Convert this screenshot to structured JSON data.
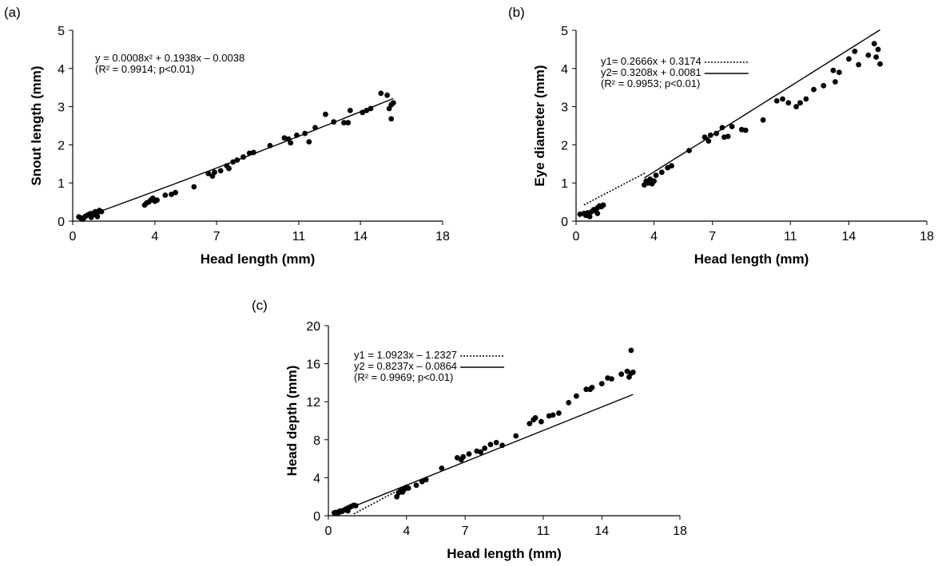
{
  "chart_data": [
    {
      "id": "a",
      "type": "scatter",
      "panel_label": "(a)",
      "xlabel": "Head length (mm)",
      "ylabel": "Snout length (mm)",
      "xlim": [
        0,
        18
      ],
      "ylim": [
        0,
        5
      ],
      "xticks": [
        0,
        4,
        7,
        11,
        14,
        18
      ],
      "yticks": [
        0,
        1,
        2,
        3,
        4,
        5
      ],
      "equations": [
        {
          "text": "y = 0.0008x² + 0.1938x – 0.0038",
          "style": "none"
        },
        {
          "text": "(R² = 0.9914; p<0.01)",
          "style": "none"
        }
      ],
      "fits": [
        {
          "kind": "poly",
          "coef": [
            0.0008,
            0.1938,
            -0.0038
          ],
          "from": 0.3,
          "to": 15.6,
          "dash": "solid"
        }
      ],
      "points": [
        [
          0.3,
          0.11
        ],
        [
          0.4,
          0.08
        ],
        [
          0.5,
          0.05
        ],
        [
          0.6,
          0.12
        ],
        [
          0.7,
          0.15
        ],
        [
          0.8,
          0.18
        ],
        [
          0.9,
          0.2
        ],
        [
          1.0,
          0.17
        ],
        [
          1.1,
          0.25
        ],
        [
          1.2,
          0.22
        ],
        [
          1.3,
          0.28
        ],
        [
          1.4,
          0.25
        ],
        [
          1.2,
          0.12
        ],
        [
          0.9,
          0.1
        ],
        [
          3.5,
          0.42
        ],
        [
          3.6,
          0.48
        ],
        [
          3.7,
          0.5
        ],
        [
          3.8,
          0.55
        ],
        [
          3.9,
          0.6
        ],
        [
          4.0,
          0.52
        ],
        [
          4.1,
          0.55
        ],
        [
          4.5,
          0.68
        ],
        [
          4.8,
          0.7
        ],
        [
          5.0,
          0.75
        ],
        [
          5.9,
          0.9
        ],
        [
          6.6,
          1.25
        ],
        [
          6.8,
          1.18
        ],
        [
          6.9,
          1.28
        ],
        [
          7.2,
          1.32
        ],
        [
          7.5,
          1.45
        ],
        [
          7.6,
          1.38
        ],
        [
          7.8,
          1.55
        ],
        [
          8.0,
          1.6
        ],
        [
          8.3,
          1.68
        ],
        [
          8.6,
          1.78
        ],
        [
          8.8,
          1.8
        ],
        [
          9.6,
          1.98
        ],
        [
          10.3,
          2.18
        ],
        [
          10.5,
          2.15
        ],
        [
          10.6,
          2.05
        ],
        [
          10.9,
          2.25
        ],
        [
          11.3,
          2.3
        ],
        [
          11.5,
          2.08
        ],
        [
          11.8,
          2.45
        ],
        [
          12.3,
          2.8
        ],
        [
          12.7,
          2.6
        ],
        [
          13.2,
          2.58
        ],
        [
          13.4,
          2.58
        ],
        [
          13.5,
          2.9
        ],
        [
          14.1,
          2.85
        ],
        [
          14.3,
          2.9
        ],
        [
          14.5,
          2.95
        ],
        [
          15.0,
          3.35
        ],
        [
          15.3,
          3.3
        ],
        [
          15.4,
          2.95
        ],
        [
          15.5,
          2.68
        ],
        [
          15.5,
          3.05
        ],
        [
          15.6,
          3.1
        ]
      ]
    },
    {
      "id": "b",
      "type": "scatter",
      "panel_label": "(b)",
      "xlabel": "Head length (mm)",
      "ylabel": "Eye diameter (mm)",
      "xlim": [
        0,
        18
      ],
      "ylim": [
        0,
        5
      ],
      "xticks": [
        0,
        4,
        7,
        11,
        14,
        18
      ],
      "yticks": [
        0,
        1,
        2,
        3,
        4,
        5
      ],
      "equations": [
        {
          "text": "y1= 0.2666x + 0.3174",
          "style": "dotted"
        },
        {
          "text": "y2= 0.3208x + 0.0081",
          "style": "solid"
        },
        {
          "text": "(R² = 0.9953; p<0.01)",
          "style": "none"
        }
      ],
      "fits": [
        {
          "kind": "linear",
          "coef": [
            0.2666,
            0.3174
          ],
          "from": 0.4,
          "to": 3.6,
          "dash": "dotted"
        },
        {
          "kind": "linear",
          "coef": [
            0.3208,
            0.0081
          ],
          "from": 3.5,
          "to": 15.6,
          "dash": "solid"
        }
      ],
      "points": [
        [
          0.2,
          0.18
        ],
        [
          0.4,
          0.2
        ],
        [
          0.5,
          0.15
        ],
        [
          0.6,
          0.22
        ],
        [
          0.7,
          0.12
        ],
        [
          0.8,
          0.25
        ],
        [
          0.9,
          0.3
        ],
        [
          1.0,
          0.28
        ],
        [
          1.1,
          0.35
        ],
        [
          1.2,
          0.4
        ],
        [
          1.3,
          0.38
        ],
        [
          1.4,
          0.42
        ],
        [
          1.1,
          0.2
        ],
        [
          3.5,
          0.95
        ],
        [
          3.6,
          1.05
        ],
        [
          3.7,
          1.0
        ],
        [
          3.8,
          1.1
        ],
        [
          3.9,
          0.98
        ],
        [
          4.0,
          1.05
        ],
        [
          4.1,
          1.2
        ],
        [
          4.4,
          1.28
        ],
        [
          4.7,
          1.4
        ],
        [
          4.9,
          1.45
        ],
        [
          5.8,
          1.85
        ],
        [
          6.6,
          2.2
        ],
        [
          6.8,
          2.1
        ],
        [
          6.9,
          2.25
        ],
        [
          7.2,
          2.3
        ],
        [
          7.5,
          2.45
        ],
        [
          7.6,
          2.2
        ],
        [
          7.8,
          2.22
        ],
        [
          8.0,
          2.48
        ],
        [
          8.5,
          2.4
        ],
        [
          8.7,
          2.38
        ],
        [
          9.6,
          2.65
        ],
        [
          10.3,
          3.15
        ],
        [
          10.6,
          3.2
        ],
        [
          10.9,
          3.1
        ],
        [
          11.3,
          3.0
        ],
        [
          11.5,
          3.1
        ],
        [
          11.8,
          3.2
        ],
        [
          12.2,
          3.45
        ],
        [
          12.7,
          3.55
        ],
        [
          13.2,
          3.95
        ],
        [
          13.3,
          3.65
        ],
        [
          13.5,
          3.9
        ],
        [
          14.0,
          4.25
        ],
        [
          14.3,
          4.45
        ],
        [
          14.5,
          4.1
        ],
        [
          15.0,
          4.35
        ],
        [
          15.3,
          4.65
        ],
        [
          15.4,
          4.3
        ],
        [
          15.5,
          4.5
        ],
        [
          15.6,
          4.12
        ]
      ]
    },
    {
      "id": "c",
      "type": "scatter",
      "panel_label": "(c)",
      "xlabel": "Head length (mm)",
      "ylabel": "Head depth (mm)",
      "xlim": [
        0,
        18
      ],
      "ylim": [
        0,
        20
      ],
      "xticks": [
        0,
        4,
        7,
        11,
        14,
        18
      ],
      "yticks": [
        0,
        4,
        8,
        12,
        16,
        20
      ],
      "equations": [
        {
          "text": "y1 = 1.0923x – 1.2327",
          "style": "dotted"
        },
        {
          "text": "y2 = 0.8237x – 0.0864",
          "style": "solid"
        },
        {
          "text": "(R² = 0.9969; p<0.01)",
          "style": "none"
        }
      ],
      "fits": [
        {
          "kind": "linear",
          "coef": [
            1.0923,
            -1.2327
          ],
          "from": 1.3,
          "to": 3.6,
          "dash": "dotted"
        },
        {
          "kind": "linear",
          "coef": [
            0.8237,
            -0.0864
          ],
          "from": 0.3,
          "to": 15.6,
          "dash": "solid"
        }
      ],
      "points": [
        [
          0.3,
          0.3
        ],
        [
          0.4,
          0.35
        ],
        [
          0.5,
          0.25
        ],
        [
          0.6,
          0.5
        ],
        [
          0.7,
          0.45
        ],
        [
          0.8,
          0.6
        ],
        [
          0.9,
          0.7
        ],
        [
          1.0,
          0.8
        ],
        [
          1.1,
          0.9
        ],
        [
          1.2,
          1.0
        ],
        [
          1.3,
          1.1
        ],
        [
          1.4,
          1.05
        ],
        [
          1.0,
          0.5
        ],
        [
          3.5,
          2.0
        ],
        [
          3.6,
          2.4
        ],
        [
          3.7,
          2.7
        ],
        [
          3.8,
          2.5
        ],
        [
          3.9,
          2.8
        ],
        [
          4.0,
          3.0
        ],
        [
          4.1,
          2.9
        ],
        [
          4.5,
          3.2
        ],
        [
          4.8,
          3.6
        ],
        [
          5.0,
          3.8
        ],
        [
          5.8,
          5.0
        ],
        [
          6.6,
          6.1
        ],
        [
          6.8,
          5.9
        ],
        [
          6.9,
          6.2
        ],
        [
          7.2,
          6.5
        ],
        [
          7.6,
          6.8
        ],
        [
          7.8,
          6.7
        ],
        [
          8.0,
          7.1
        ],
        [
          8.3,
          7.5
        ],
        [
          8.6,
          7.7
        ],
        [
          8.9,
          7.4
        ],
        [
          9.6,
          8.4
        ],
        [
          10.3,
          9.7
        ],
        [
          10.5,
          10.1
        ],
        [
          10.6,
          10.3
        ],
        [
          10.9,
          9.9
        ],
        [
          11.3,
          10.5
        ],
        [
          11.5,
          10.6
        ],
        [
          11.8,
          10.8
        ],
        [
          12.3,
          11.9
        ],
        [
          12.7,
          12.6
        ],
        [
          13.2,
          13.3
        ],
        [
          13.4,
          13.3
        ],
        [
          13.5,
          13.5
        ],
        [
          14.0,
          13.9
        ],
        [
          14.3,
          14.5
        ],
        [
          14.5,
          14.4
        ],
        [
          15.0,
          14.9
        ],
        [
          15.3,
          15.2
        ],
        [
          15.4,
          14.6
        ],
        [
          15.5,
          15.0
        ],
        [
          15.5,
          17.4
        ],
        [
          15.6,
          15.1
        ]
      ]
    }
  ]
}
